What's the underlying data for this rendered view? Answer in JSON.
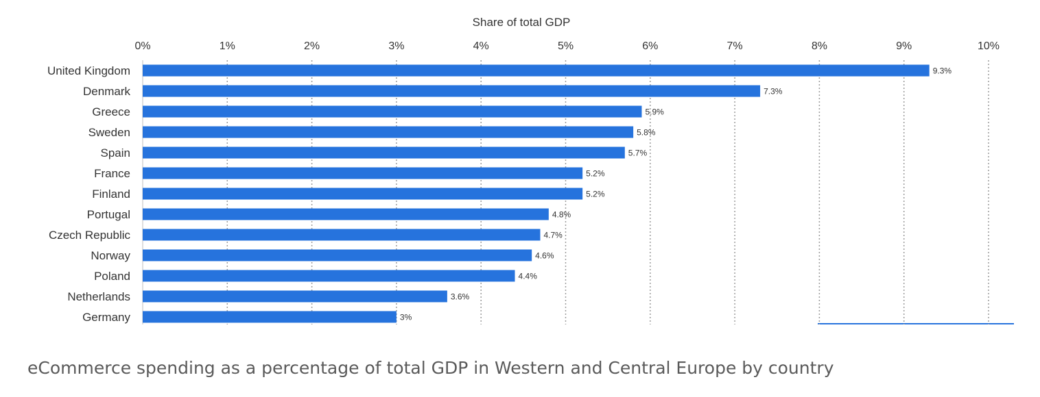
{
  "chart_data": {
    "type": "bar",
    "orientation": "horizontal",
    "xlabel": "Share of total GDP",
    "ylabel": "",
    "categories": [
      "United Kingdom",
      "Denmark",
      "Greece",
      "Sweden",
      "Spain",
      "France",
      "Finland",
      "Portugal",
      "Czech Republic",
      "Norway",
      "Poland",
      "Netherlands",
      "Germany"
    ],
    "values": [
      9.3,
      7.3,
      5.9,
      5.8,
      5.7,
      5.2,
      5.2,
      4.8,
      4.7,
      4.6,
      4.4,
      3.6,
      3
    ],
    "value_labels": [
      "9.3%",
      "7.3%",
      "5.9%",
      "5.8%",
      "5.7%",
      "5.2%",
      "5.2%",
      "4.8%",
      "4.7%",
      "4.6%",
      "4.4%",
      "3.6%",
      "3%"
    ],
    "xlim": [
      0,
      10.3
    ],
    "ticks": [
      0,
      1,
      2,
      3,
      4,
      5,
      6,
      7,
      8,
      9,
      10
    ],
    "tick_labels": [
      "0%",
      "1%",
      "2%",
      "3%",
      "4%",
      "5%",
      "6%",
      "7%",
      "8%",
      "9%",
      "10%"
    ],
    "grid": true,
    "axis_position": "top",
    "bar_color": "#2673dd",
    "grid_color": "#9a9a9a"
  },
  "caption": "eCommerce spending as a percentage of total GDP in Western and Central Europe by country"
}
